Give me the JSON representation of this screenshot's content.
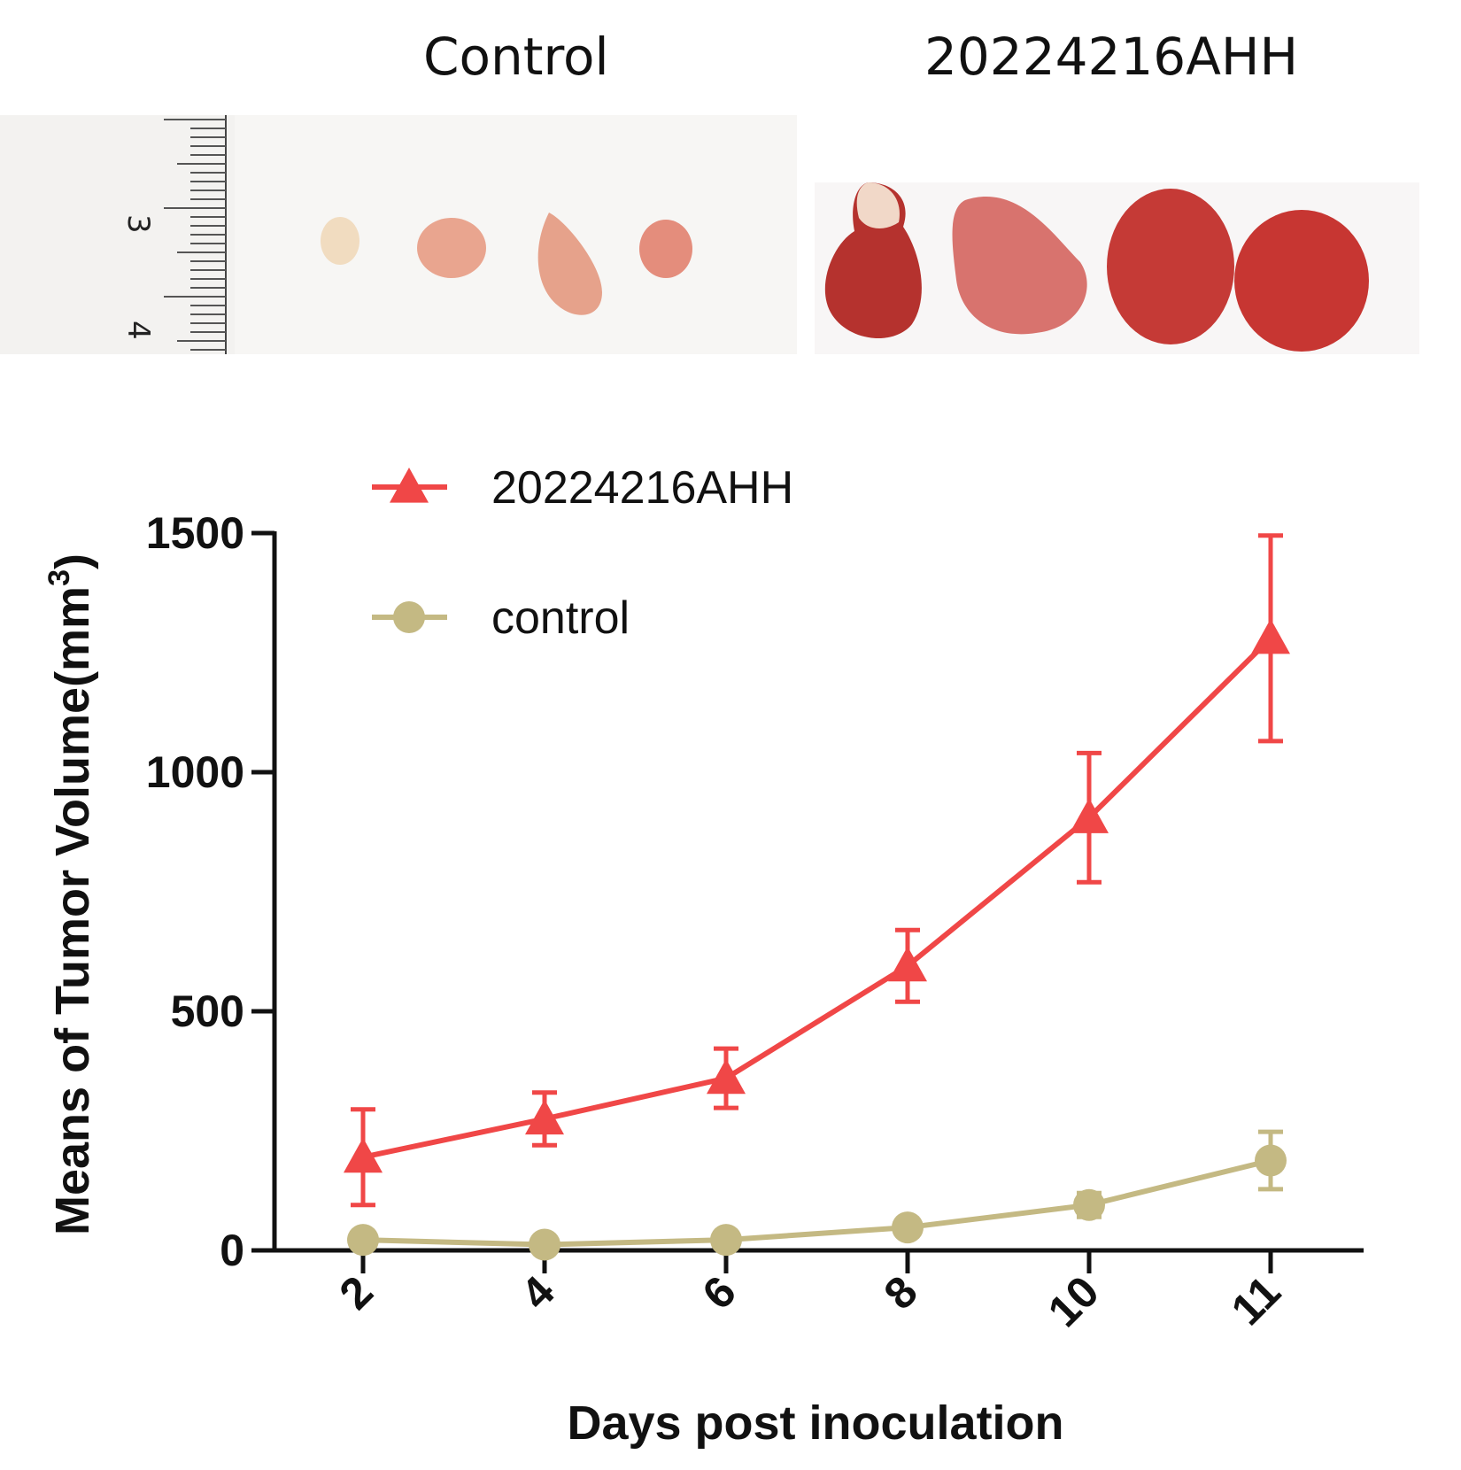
{
  "photos": {
    "control_title": "Control",
    "treated_title": "20224216AHH",
    "ruler_labels": [
      "3",
      "4"
    ]
  },
  "chart_data": {
    "type": "line",
    "title": "",
    "xlabel": "Days post inoculation",
    "ylabel_main": "Means of Tumor Volume(mm",
    "ylabel_sup": "3",
    "ylabel_close": ")",
    "categories": [
      "2",
      "4",
      "6",
      "8",
      "10",
      "11"
    ],
    "ylim": [
      0,
      1500
    ],
    "yticks": [
      0,
      500,
      1000,
      1500
    ],
    "legend_position": "top-left",
    "series": [
      {
        "name": "20224216AHH",
        "color": "#f04747",
        "marker": "triangle",
        "values": [
          195,
          275,
          360,
          595,
          905,
          1280
        ],
        "error": [
          100,
          55,
          62,
          75,
          135,
          215
        ]
      },
      {
        "name": "control",
        "color": "#c4b983",
        "marker": "circle",
        "values": [
          22,
          12,
          22,
          48,
          95,
          188
        ],
        "error": [
          8,
          6,
          8,
          10,
          25,
          60
        ]
      }
    ]
  }
}
